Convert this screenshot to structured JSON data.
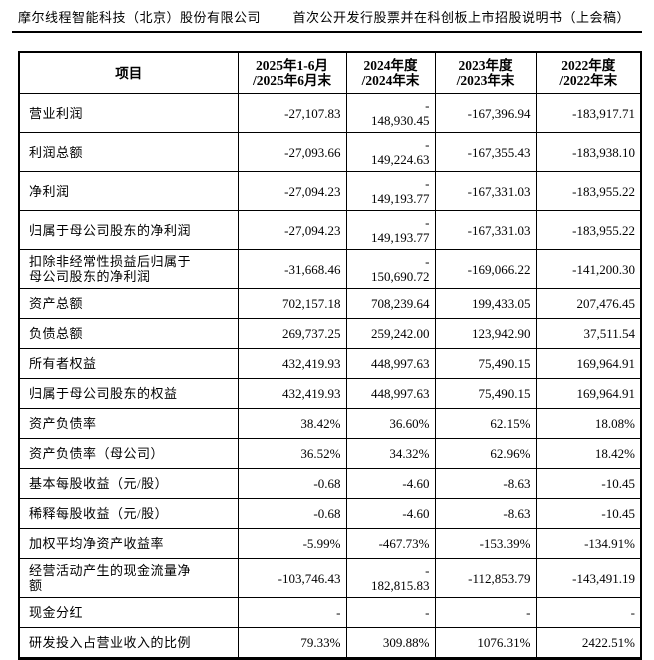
{
  "header": {
    "company": "摩尔线程智能科技（北京）股份有限公司",
    "doc_title": "首次公开发行股票并在科创板上市招股说明书（上会稿）"
  },
  "table": {
    "columns": [
      "项目",
      "2025年1-6月\n/2025年6月末",
      "2024年度\n/2024年末",
      "2023年度\n/2023年末",
      "2022年度\n/2022年末"
    ],
    "rows": [
      {
        "label": "营业利润",
        "values": [
          "-27,107.83",
          "-\n148,930.45",
          "-167,396.94",
          "-183,917.71"
        ]
      },
      {
        "label": "利润总额",
        "values": [
          "-27,093.66",
          "-\n149,224.63",
          "-167,355.43",
          "-183,938.10"
        ]
      },
      {
        "label": "净利润",
        "values": [
          "-27,094.23",
          "-\n149,193.77",
          "-167,331.03",
          "-183,955.22"
        ]
      },
      {
        "label": "归属于母公司股东的净利润",
        "values": [
          "-27,094.23",
          "-\n149,193.77",
          "-167,331.03",
          "-183,955.22"
        ]
      },
      {
        "label": "扣除非经常性损益后归属于\n母公司股东的净利润",
        "values": [
          "-31,668.46",
          "-\n150,690.72",
          "-169,066.22",
          "-141,200.30"
        ]
      },
      {
        "label": "资产总额",
        "values": [
          "702,157.18",
          "708,239.64",
          "199,433.05",
          "207,476.45"
        ]
      },
      {
        "label": "负债总额",
        "values": [
          "269,737.25",
          "259,242.00",
          "123,942.90",
          "37,511.54"
        ]
      },
      {
        "label": "所有者权益",
        "values": [
          "432,419.93",
          "448,997.63",
          "75,490.15",
          "169,964.91"
        ]
      },
      {
        "label": "归属于母公司股东的权益",
        "values": [
          "432,419.93",
          "448,997.63",
          "75,490.15",
          "169,964.91"
        ]
      },
      {
        "label": "资产负债率",
        "values": [
          "38.42%",
          "36.60%",
          "62.15%",
          "18.08%"
        ]
      },
      {
        "label": "资产负债率（母公司）",
        "values": [
          "36.52%",
          "34.32%",
          "62.96%",
          "18.42%"
        ]
      },
      {
        "label": "基本每股收益（元/股）",
        "values": [
          "-0.68",
          "-4.60",
          "-8.63",
          "-10.45"
        ]
      },
      {
        "label": "稀释每股收益（元/股）",
        "values": [
          "-0.68",
          "-4.60",
          "-8.63",
          "-10.45"
        ]
      },
      {
        "label": "加权平均净资产收益率",
        "values": [
          "-5.99%",
          "-467.73%",
          "-153.39%",
          "-134.91%"
        ]
      },
      {
        "label": "经营活动产生的现金流量净\n额",
        "values": [
          "-103,746.43",
          "-\n182,815.83",
          "-112,853.79",
          "-143,491.19"
        ]
      },
      {
        "label": "现金分红",
        "values": [
          "-",
          "-",
          "-",
          "-"
        ]
      },
      {
        "label": "研发投入占营业收入的比例",
        "values": [
          "79.33%",
          "309.88%",
          "1076.31%",
          "2422.51%"
        ]
      }
    ]
  },
  "colors": {
    "text": "#000000",
    "border": "#000000",
    "background": "#ffffff"
  }
}
